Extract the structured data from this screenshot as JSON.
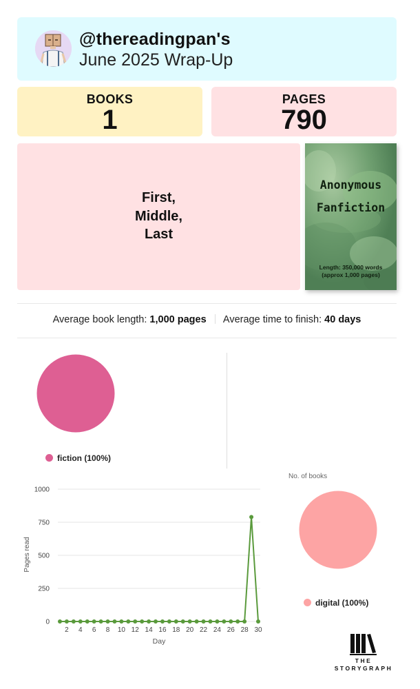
{
  "header": {
    "handle": "@thereadingpan's",
    "subtitle": "June 2025 Wrap-Up"
  },
  "stats": {
    "books_label": "BOOKS",
    "books_value": "1",
    "pages_label": "PAGES",
    "pages_value": "790"
  },
  "book": {
    "title": "First,\nMiddle,\nLast"
  },
  "cover": {
    "title": "Anonymous\nFanfiction",
    "length_line1": "Length: 350,000 words",
    "length_line2": "(approx 1,000 pages)"
  },
  "averages": {
    "length_label": "Average book length:",
    "length_value": "1,000 pages",
    "time_label": "Average time to finish:",
    "time_value": "40 days"
  },
  "genre_pie": {
    "legend": "fiction (100%)",
    "color": "#de5f93"
  },
  "format_pie": {
    "caption": "No. of books",
    "legend": "digital (100%)",
    "color": "#fda4a4"
  },
  "logo": {
    "line1": "THE",
    "line2": "STORYGRAPH"
  },
  "chart_data": {
    "type": "line",
    "xlabel": "Day",
    "ylabel": "Pages read",
    "ylim": [
      0,
      1000
    ],
    "xlim": [
      1,
      30
    ],
    "yticks": [
      0,
      250,
      500,
      750,
      1000
    ],
    "xticks": [
      2,
      4,
      6,
      8,
      10,
      12,
      14,
      16,
      18,
      20,
      22,
      24,
      26,
      28,
      30
    ],
    "x": [
      1,
      2,
      3,
      4,
      5,
      6,
      7,
      8,
      9,
      10,
      11,
      12,
      13,
      14,
      15,
      16,
      17,
      18,
      19,
      20,
      21,
      22,
      23,
      24,
      25,
      26,
      27,
      28,
      29,
      30
    ],
    "values": [
      0,
      0,
      0,
      0,
      0,
      0,
      0,
      0,
      0,
      0,
      0,
      0,
      0,
      0,
      0,
      0,
      0,
      0,
      0,
      0,
      0,
      0,
      0,
      0,
      0,
      0,
      0,
      0,
      790,
      0
    ],
    "color": "#5a9a3c",
    "grid": true
  }
}
